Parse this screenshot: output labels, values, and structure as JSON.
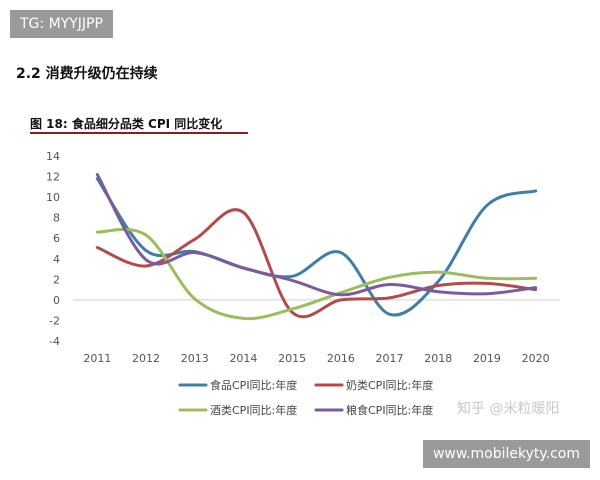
{
  "watermark_top": "TG: MYYJJPP",
  "section_title": "2.2 消费升级仍在持续",
  "figure_caption": "图 18: 食品细分品类 CPI 同比变化",
  "watermark_zhihu": "知乎 @米粒暖阳",
  "watermark_bottom": "www.mobilekyty.com",
  "chart_data": {
    "type": "line",
    "title": "",
    "xlabel": "",
    "ylabel": "",
    "x": [
      "2011",
      "2012",
      "2013",
      "2014",
      "2015",
      "2016",
      "2017",
      "2018",
      "2019",
      "2020"
    ],
    "ylim": [
      -4,
      14
    ],
    "yticks": [
      -4,
      -2,
      0,
      2,
      4,
      6,
      8,
      10,
      12,
      14
    ],
    "grid": false,
    "legend_position": "bottom",
    "series": [
      {
        "name": "食品CPI同比:年度",
        "color": "#3e7ea8",
        "values": [
          11.8,
          4.8,
          4.7,
          3.1,
          2.3,
          4.6,
          -1.4,
          1.8,
          9.2,
          10.6
        ]
      },
      {
        "name": "奶类CPI同比:年度",
        "color": "#b24b4b",
        "values": [
          5.1,
          3.3,
          5.9,
          8.5,
          -1.2,
          0.0,
          0.2,
          1.4,
          1.6,
          1.0
        ]
      },
      {
        "name": "酒类CPI同比:年度",
        "color": "#9dbd5c",
        "values": [
          6.6,
          6.3,
          0.1,
          -1.8,
          -0.9,
          0.7,
          2.2,
          2.7,
          2.1,
          2.1
        ]
      },
      {
        "name": "粮食CPI同比:年度",
        "color": "#7a5c9e",
        "values": [
          12.2,
          3.9,
          4.6,
          3.1,
          1.9,
          0.5,
          1.5,
          0.8,
          0.6,
          1.2
        ]
      }
    ]
  }
}
